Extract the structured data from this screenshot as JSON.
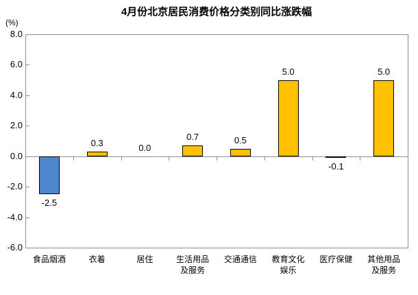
{
  "chart_data": {
    "type": "bar",
    "title": "4月份北京居民消费价格分类别同比涨跌幅",
    "ylabel": "(%)",
    "categories": [
      "食品烟酒",
      "衣着",
      "居住",
      "生活用品\n及服务",
      "交通通信",
      "教育文化\n娱乐",
      "医疗保健",
      "其他用品\n及服务"
    ],
    "values": [
      -2.5,
      0.3,
      0.0,
      0.7,
      0.5,
      5.0,
      -0.1,
      5.0
    ],
    "value_labels": [
      "-2.5",
      "0.3",
      "0.0",
      "0.7",
      "0.5",
      "5.0",
      "-0.1",
      "5.0"
    ],
    "ylim": [
      -6.0,
      8.0
    ],
    "yticks": [
      8.0,
      6.0,
      4.0,
      2.0,
      0.0,
      -2.0,
      -4.0,
      -6.0
    ],
    "grid": "off",
    "legend": "none",
    "colors": {
      "positive_bar": "#FFC000",
      "negative_bar": "#4F87CD",
      "bar_border": "#000000",
      "axis_line": "#8C8C8C",
      "text": "#000000"
    }
  }
}
